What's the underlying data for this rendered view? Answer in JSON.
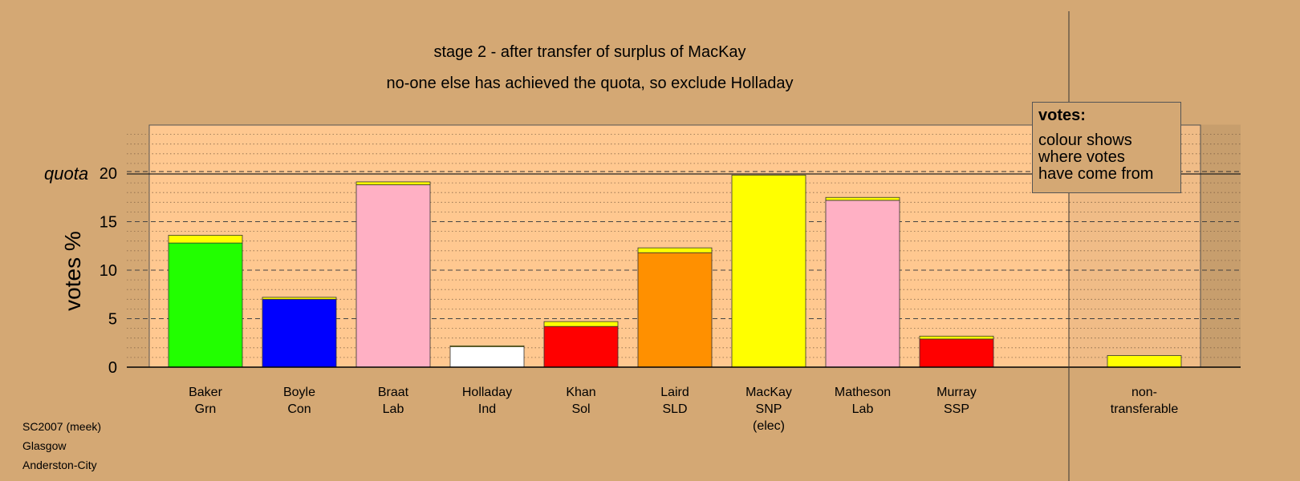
{
  "chart_data": {
    "type": "bar",
    "stacked": true,
    "title": "stage 2 - after transfer of surplus of MacKay",
    "subtitle": "no-one else has achieved the quota, so exclude Holladay",
    "ylabel": "votes %",
    "ylim": [
      0,
      25
    ],
    "yticks": [
      0,
      5,
      10,
      15,
      20
    ],
    "quota_label": "quota",
    "quota": 20,
    "categories": [
      {
        "lines": [
          "Baker",
          "Grn"
        ]
      },
      {
        "lines": [
          "Boyle",
          "Con"
        ]
      },
      {
        "lines": [
          "Braat",
          "Lab"
        ]
      },
      {
        "lines": [
          "Holladay",
          "Ind"
        ]
      },
      {
        "lines": [
          "Khan",
          "Sol"
        ]
      },
      {
        "lines": [
          "Laird",
          "SLD"
        ]
      },
      {
        "lines": [
          "MacKay",
          "SNP",
          "(elec)"
        ]
      },
      {
        "lines": [
          "Matheson",
          "Lab"
        ]
      },
      {
        "lines": [
          "Murray",
          "SSP"
        ]
      },
      {
        "lines": [
          "non-",
          "transferable"
        ]
      }
    ],
    "bars": [
      {
        "segments": [
          {
            "value": 12.8,
            "color": "#22ff00"
          },
          {
            "value": 0.8,
            "color": "#ffff00"
          }
        ]
      },
      {
        "segments": [
          {
            "value": 7.0,
            "color": "#0000ff"
          },
          {
            "value": 0.2,
            "color": "#ffff00"
          }
        ]
      },
      {
        "segments": [
          {
            "value": 18.8,
            "color": "#ffb0c4"
          },
          {
            "value": 0.3,
            "color": "#ffff00"
          }
        ]
      },
      {
        "segments": [
          {
            "value": 2.1,
            "color": "#ffffff"
          },
          {
            "value": 0.1,
            "color": "#ffff00"
          }
        ]
      },
      {
        "segments": [
          {
            "value": 4.2,
            "color": "#ff0000"
          },
          {
            "value": 0.5,
            "color": "#ffff00"
          }
        ]
      },
      {
        "segments": [
          {
            "value": 11.8,
            "color": "#ff9000"
          },
          {
            "value": 0.5,
            "color": "#ffff00"
          }
        ]
      },
      {
        "segments": [
          {
            "value": 19.8,
            "color": "#ffff00"
          }
        ]
      },
      {
        "segments": [
          {
            "value": 17.2,
            "color": "#ffb0c4"
          },
          {
            "value": 0.3,
            "color": "#ffff00"
          }
        ]
      },
      {
        "segments": [
          {
            "value": 2.9,
            "color": "#ff0000"
          },
          {
            "value": 0.3,
            "color": "#ffff00"
          }
        ]
      },
      {
        "segments": [
          {
            "value": 1.2,
            "color": "#ffff00"
          }
        ]
      }
    ],
    "legend": {
      "heading": "votes:",
      "body": "colour shows\nwhere votes\nhave come from"
    },
    "colors": {
      "page_background": "#d4a874",
      "plot_background": "#ffc890"
    }
  },
  "footer": {
    "line1": "SC2007 (meek)",
    "line2": "Glasgow",
    "line3": "Anderston-City"
  }
}
